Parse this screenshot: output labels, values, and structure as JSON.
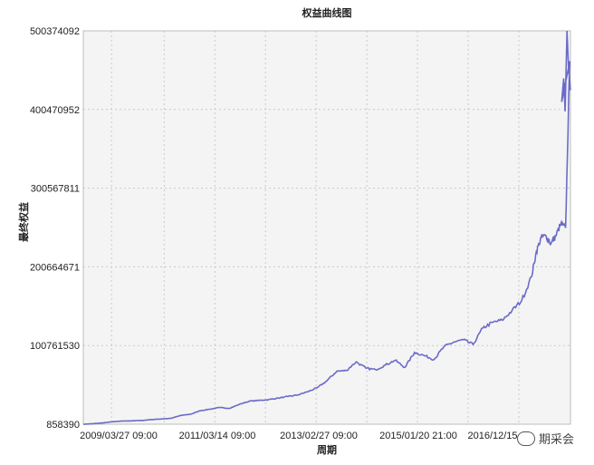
{
  "chart_data": {
    "type": "line",
    "title": "权益曲线图",
    "xlabel": "周期",
    "ylabel": "最终权益",
    "x_ticks": [
      "2009/03/27 09:00",
      "2011/03/14 09:00",
      "2013/02/27 09:00",
      "2015/01/20 21:00",
      "2016/12/15"
    ],
    "y_ticks": [
      858390,
      100761530,
      200664671,
      300567811,
      400470952,
      500374092
    ],
    "ylim": [
      858390,
      500374092
    ],
    "grid": true,
    "series": [
      {
        "color": "#6b6bc8",
        "x": [
          0,
          2,
          4,
          6,
          8,
          10,
          12,
          14,
          16,
          18,
          20,
          22,
          24,
          26,
          28,
          30,
          32,
          34,
          36,
          38,
          40,
          42,
          44,
          46,
          48,
          50,
          52,
          54,
          56,
          58,
          60,
          62,
          64,
          66,
          68,
          70,
          72,
          74,
          76,
          78,
          80,
          82,
          84,
          86,
          88,
          90,
          92,
          93,
          94,
          95,
          96,
          97,
          98,
          99,
          100
        ],
        "y": [
          858390,
          1500000,
          2500000,
          4000000,
          4800000,
          5200000,
          5600000,
          6800000,
          7500000,
          8300000,
          12000000,
          13500000,
          18000000,
          20000000,
          22000000,
          21000000,
          26000000,
          30000000,
          31000000,
          32000000,
          34000000,
          36000000,
          38000000,
          42000000,
          47000000,
          56000000,
          68000000,
          69000000,
          80000000,
          72000000,
          70000000,
          76000000,
          82000000,
          73000000,
          92000000,
          88000000,
          83000000,
          99000000,
          105000000,
          108000000,
          102000000,
          123000000,
          130000000,
          133000000,
          145000000,
          158000000,
          188000000,
          220000000,
          238000000,
          240000000,
          230000000,
          240000000,
          255000000,
          250000000,
          500374092
        ]
      }
    ]
  },
  "watermark": {
    "text": "期采会"
  }
}
